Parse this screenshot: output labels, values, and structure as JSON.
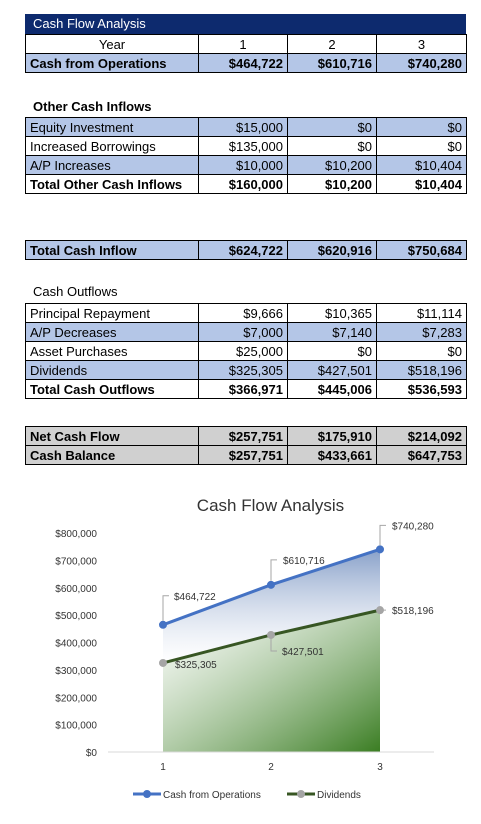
{
  "title": "Cash Flow Analysis",
  "header": {
    "label": "Year",
    "years": [
      "1",
      "2",
      "3"
    ]
  },
  "operations": {
    "label": "Cash from Operations",
    "values": [
      "$464,722",
      "$610,716",
      "$740,280"
    ]
  },
  "other_inflows": {
    "heading": "Other Cash Inflows",
    "rows": [
      {
        "label": "Equity Investment",
        "values": [
          "$15,000",
          "$0",
          "$0"
        ]
      },
      {
        "label": "Increased Borrowings",
        "values": [
          "$135,000",
          "$0",
          "$0"
        ]
      },
      {
        "label": "A/P Increases",
        "values": [
          "$10,000",
          "$10,200",
          "$10,404"
        ]
      }
    ],
    "total": {
      "label": "Total Other Cash Inflows",
      "values": [
        "$160,000",
        "$10,200",
        "$10,404"
      ]
    }
  },
  "total_inflow": {
    "label": "Total Cash Inflow",
    "values": [
      "$624,722",
      "$620,916",
      "$750,684"
    ]
  },
  "outflows": {
    "heading": "Cash Outflows",
    "rows": [
      {
        "label": "Principal Repayment",
        "values": [
          "$9,666",
          "$10,365",
          "$11,114"
        ]
      },
      {
        "label": "A/P Decreases",
        "values": [
          "$7,000",
          "$7,140",
          "$7,283"
        ]
      },
      {
        "label": "Asset Purchases",
        "values": [
          "$25,000",
          "$0",
          "$0"
        ]
      },
      {
        "label": "Dividends",
        "values": [
          "$325,305",
          "$427,501",
          "$518,196"
        ]
      }
    ],
    "total": {
      "label": "Total Cash Outflows",
      "values": [
        "$366,971",
        "$445,006",
        "$536,593"
      ]
    }
  },
  "net": {
    "rows": [
      {
        "label": "Net Cash Flow",
        "values": [
          "$257,751",
          "$175,910",
          "$214,092"
        ]
      },
      {
        "label": "Cash Balance",
        "values": [
          "$257,751",
          "$433,661",
          "$647,753"
        ]
      }
    ]
  },
  "chart_data": {
    "type": "line",
    "title": "Cash Flow Analysis",
    "x": [
      1,
      2,
      3
    ],
    "ylim": [
      0,
      800000
    ],
    "yticks": [
      0,
      100000,
      200000,
      300000,
      400000,
      500000,
      600000,
      700000,
      800000
    ],
    "ytick_labels": [
      "$0",
      "$100,000",
      "$200,000",
      "$300,000",
      "$400,000",
      "$500,000",
      "$600,000",
      "$700,000",
      "$800,000"
    ],
    "grid": false,
    "legend": "bottom",
    "series": [
      {
        "name": "Cash from Operations",
        "values": [
          464722,
          610716,
          740280
        ],
        "labels": [
          "$464,722",
          "$610,716",
          "$740,280"
        ],
        "color": "#4472c4",
        "marker": "#4472c4"
      },
      {
        "name": "Dividends",
        "values": [
          325305,
          427501,
          518196
        ],
        "labels": [
          "$325,305",
          "$427,501",
          "$518,196"
        ],
        "color": "#375623",
        "marker": "#a5a5a5"
      }
    ]
  }
}
